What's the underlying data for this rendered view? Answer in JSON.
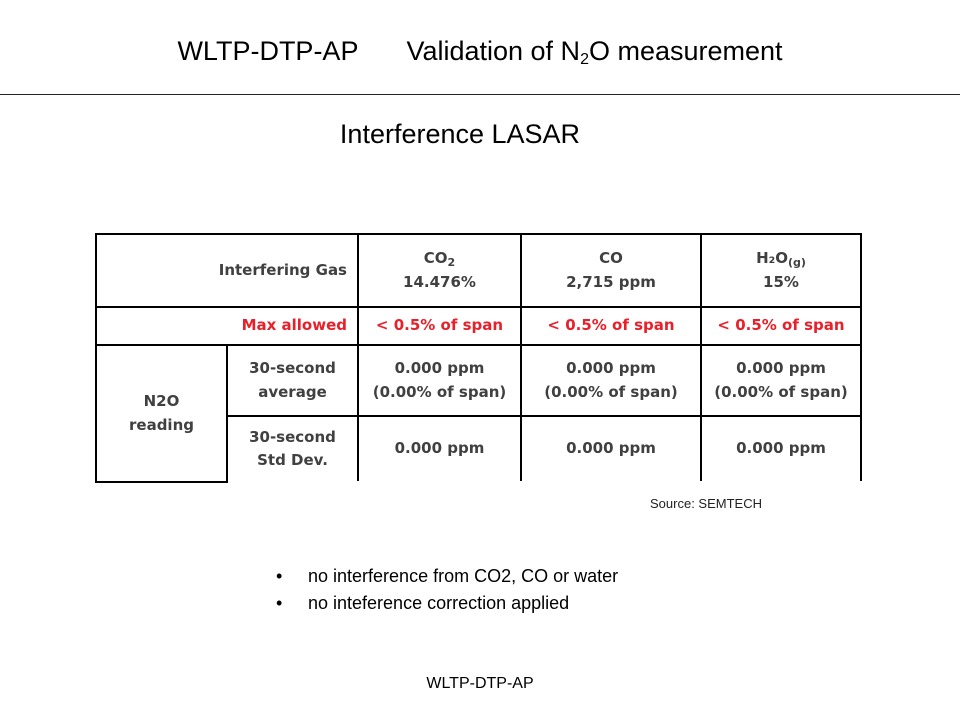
{
  "header": {
    "left": "WLTP-DTP-AP",
    "right_prefix": "Validation of N",
    "right_sub": "2",
    "right_suffix": "O measurement"
  },
  "subtitle": "Interference LASAR",
  "table": {
    "interfering_gas_label": "Interfering Gas",
    "columns": [
      {
        "name_base": "CO",
        "name_sub": "2",
        "value": "14.476%"
      },
      {
        "name_base": "CO",
        "name_sub": "",
        "value": "2,715 ppm"
      },
      {
        "name_base": "H₂O",
        "name_sub": "(g)",
        "value": "15%"
      }
    ],
    "max_allowed_label": "Max allowed",
    "max_allowed": [
      "< 0.5% of span",
      "< 0.5% of span",
      "< 0.5% of span"
    ],
    "reading_label_line1": "N2O",
    "reading_label_line2": "reading",
    "avg_label_line1": "30-second",
    "avg_label_line2": "average",
    "avg_values": [
      {
        "ppm": "0.000 ppm",
        "span": "(0.00% of span)"
      },
      {
        "ppm": "0.000 ppm",
        "span": "(0.00% of span)"
      },
      {
        "ppm": "0.000 ppm",
        "span": "(0.00% of span)"
      }
    ],
    "std_label_line1": "30-second",
    "std_label_line2": "Std Dev.",
    "std_values": [
      "0.000 ppm",
      "0.000 ppm",
      "0.000 ppm"
    ]
  },
  "source": "Source: SEMTECH",
  "bullets": [
    "no interference from CO2, CO or water",
    "no inteference correction applied"
  ],
  "bullet_char": "•",
  "footer": "WLTP-DTP-AP",
  "colors": {
    "highlight_red": "#e8202a",
    "table_text": "#404040"
  }
}
